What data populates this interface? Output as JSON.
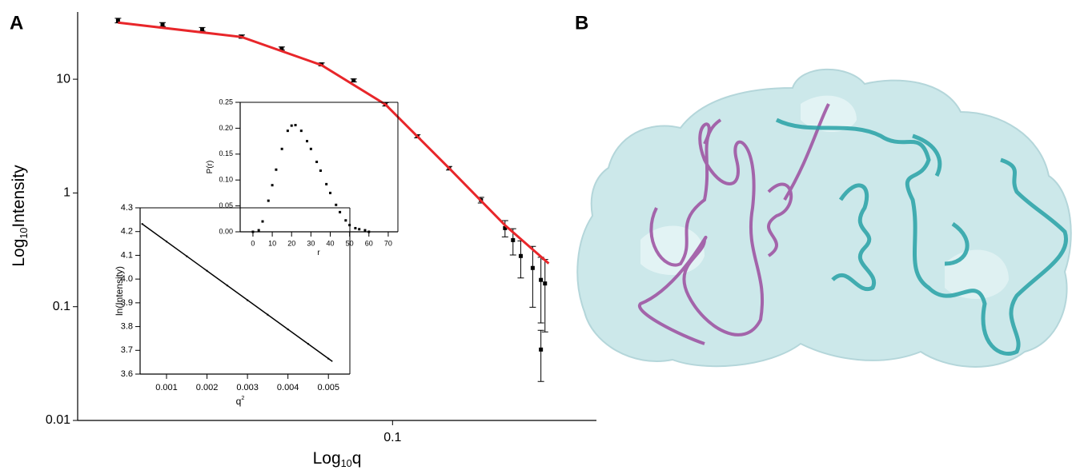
{
  "panel_labels": {
    "a": "A",
    "b": "B"
  },
  "chart_data": [
    {
      "type": "scatter",
      "xscale": "log",
      "yscale": "log",
      "xlabel": [
        "Log",
        "10",
        "q"
      ],
      "ylabel": [
        "Log",
        "10",
        "Intensity"
      ],
      "xlim": [
        0.0298,
        0.219
      ],
      "ylim": [
        0.01,
        39
      ],
      "xticks": [
        0.1
      ],
      "yticks": [
        0.01,
        0.1,
        1,
        10
      ],
      "series": [
        {
          "mode": "markers",
          "color": "#000000",
          "x": [
            0.0348,
            0.0413,
            0.0481,
            0.056,
            0.0653,
            0.0761,
            0.0861,
            0.0973,
            0.11,
            0.1243,
            0.1405,
            0.1541,
            0.1589,
            0.1637,
            0.1714,
            0.1769,
            0.1797,
            0.1769
          ],
          "values": [
            32.8,
            30.3,
            27.5,
            23.7,
            18.6,
            13.5,
            9.76,
            6.01,
            3.15,
            1.65,
            0.865,
            0.491,
            0.385,
            0.279,
            0.219,
            0.172,
            0.16,
            0.042
          ],
          "errors": [
            1.5,
            1.2,
            1,
            0.8,
            0.6,
            0.4,
            0.3,
            0.2,
            0.1,
            0.06,
            0.05,
            0.08,
            0.1,
            0.1,
            0.12,
            0.1,
            0.1,
            0.02
          ]
        },
        {
          "mode": "line",
          "color": "#e8262a",
          "x": [
            0.0348,
            0.056,
            0.0761,
            0.0973,
            0.1243,
            0.1541,
            0.1823
          ],
          "values": [
            31.5,
            23.5,
            13.3,
            6.0,
            1.65,
            0.52,
            0.24
          ]
        }
      ]
    },
    {
      "type": "scatter",
      "xlabel": [
        "q",
        "2"
      ],
      "ylabel": [
        "ln(Intensity)"
      ],
      "xlim": [
        0.000347,
        0.00553
      ],
      "ylim": [
        3.6,
        4.3
      ],
      "xticks": [
        0.001,
        0.002,
        0.003,
        0.004,
        0.005
      ],
      "yticks": [
        3.6,
        3.7,
        3.8,
        3.9,
        {
          "value": 4,
          "label": "4.0"
        },
        4.1,
        4.2,
        4.3
      ],
      "series": [
        {
          "mode": "markers",
          "color": "#000000",
          "x": [
            0.0004,
            0.001,
            0.0015,
            0.002,
            0.0025,
            0.003,
            0.0035,
            0.004,
            0.0045,
            0.005
          ],
          "values": [
            4.232,
            4.158,
            4.096,
            4.035,
            3.973,
            3.911,
            3.85,
            3.788,
            3.727,
            3.665
          ]
        },
        {
          "mode": "line",
          "color": "#000000",
          "x": [
            0.00039,
            0.0051
          ],
          "values": [
            4.233,
            3.653
          ]
        }
      ]
    },
    {
      "type": "scatter",
      "xlabel": [
        "r"
      ],
      "ylabel": [
        "P(r)"
      ],
      "xlim": [
        -6.6,
        75
      ],
      "ylim": [
        0,
        0.25
      ],
      "xticks": [
        0,
        10,
        20,
        30,
        40,
        50,
        60,
        70
      ],
      "yticks": [
        {
          "value": 0,
          "label": "0.00"
        },
        {
          "value": 0.05,
          "label": "0.05"
        },
        {
          "value": 0.1,
          "label": "0.10"
        },
        {
          "value": 0.15,
          "label": "0.15"
        },
        {
          "value": 0.2,
          "label": "0.20"
        },
        {
          "value": 0.25,
          "label": "0.25"
        }
      ],
      "series": [
        {
          "mode": "markers",
          "color": "#000000",
          "x": [
            0,
            3,
            5,
            8,
            10,
            12,
            15,
            18,
            20,
            22,
            25,
            28,
            30,
            33,
            35,
            38,
            40,
            43,
            45,
            48,
            50,
            53,
            55,
            58,
            60
          ],
          "values": [
            0,
            0.003,
            0.02,
            0.06,
            0.09,
            0.12,
            0.16,
            0.195,
            0.205,
            0.206,
            0.195,
            0.175,
            0.16,
            0.135,
            0.118,
            0.092,
            0.075,
            0.052,
            0.038,
            0.022,
            0.013,
            0.007,
            0.005,
            0.003,
            0
          ]
        }
      ]
    }
  ]
}
